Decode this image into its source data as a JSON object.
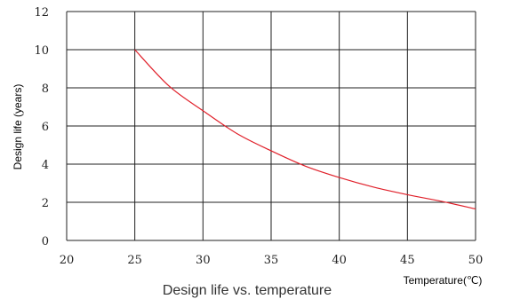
{
  "chart_data": {
    "type": "line",
    "title": "Design life vs. temperature",
    "xlabel": "Temperature(℃)",
    "ylabel": "Design life (years)",
    "xlim": [
      20,
      50
    ],
    "ylim": [
      0,
      12
    ],
    "xticks": [
      20,
      25,
      30,
      35,
      40,
      45,
      50
    ],
    "yticks": [
      0,
      2,
      4,
      6,
      8,
      10,
      12
    ],
    "grid": true,
    "series": [
      {
        "color": "#e0202a",
        "x": [
          25,
          27.5,
          30,
          32.5,
          35,
          37.5,
          40,
          42.5,
          45,
          47.5,
          50
        ],
        "y": [
          10,
          8.1,
          6.8,
          5.6,
          4.7,
          3.9,
          3.3,
          2.8,
          2.4,
          2.05,
          1.65
        ]
      }
    ]
  }
}
